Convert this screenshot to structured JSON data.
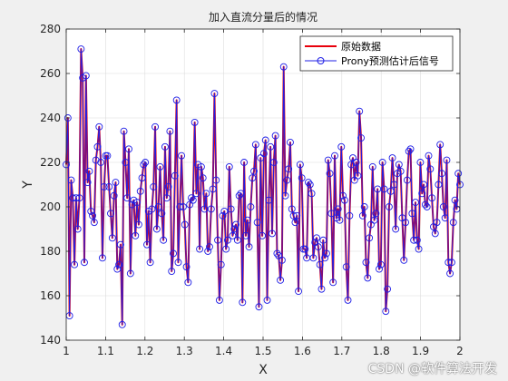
{
  "chart_data": {
    "type": "line",
    "title": "加入直流分量后的情况",
    "xlabel": "X",
    "ylabel": "Y",
    "xlim": [
      1,
      2
    ],
    "ylim": [
      140,
      280
    ],
    "xticks": [
      1,
      1.1,
      1.2,
      1.3,
      1.4,
      1.5,
      1.6,
      1.7,
      1.8,
      1.9,
      2
    ],
    "xtick_labels": [
      "1",
      "1.1",
      "1.2",
      "1.3",
      "1.4",
      "1.5",
      "1.6",
      "1.7",
      "1.8",
      "1.9",
      "2"
    ],
    "yticks": [
      140,
      160,
      180,
      200,
      220,
      240,
      260,
      280
    ],
    "ytick_labels": [
      "140",
      "160",
      "180",
      "200",
      "220",
      "240",
      "260",
      "280"
    ],
    "grid": true,
    "legend_position": "top-right",
    "x_start": 1,
    "x_end": 2,
    "series": [
      {
        "name": "原始数据",
        "color": "#e8000b",
        "marker": "none",
        "values": [
          219,
          240,
          151,
          212,
          204,
          174,
          204,
          190,
          204,
          271,
          258,
          175,
          259,
          211,
          216,
          198,
          196,
          193,
          221,
          227,
          236,
          220,
          177,
          209,
          223,
          223,
          209,
          197,
          186,
          205,
          211,
          172,
          174,
          183,
          147,
          234,
          220,
          204,
          226,
          170,
          201,
          203,
          187,
          202,
          192,
          207,
          213,
          219,
          220,
          183,
          198,
          175,
          199,
          209,
          236,
          190,
          200,
          218,
          197,
          185,
          227,
          204,
          209,
          234,
          171,
          179,
          214,
          248,
          175,
          200,
          223,
          200,
          192,
          173,
          166,
          201,
          204,
          203,
          238,
          206,
          219,
          181,
          218,
          213,
          199,
          206,
          180,
          182,
          199,
          208,
          251,
          212,
          185,
          158,
          174,
          196,
          198,
          181,
          185,
          218,
          199,
          187,
          190,
          192,
          185,
          205,
          206,
          157,
          220,
          187,
          194,
          182,
          200,
          213,
          216,
          228,
          193,
          155,
          222,
          187,
          224,
          230,
          158,
          203,
          227,
          188,
          220,
          232,
          179,
          178,
          167,
          176,
          263,
          205,
          212,
          217,
          229,
          199,
          196,
          193,
          196,
          162,
          219,
          213,
          181,
          181,
          177,
          211,
          210,
          206,
          177,
          184,
          186,
          182,
          174,
          163,
          185,
          177,
          179,
          221,
          215,
          197,
          166,
          223,
          195,
          199,
          194,
          227,
          205,
          203,
          173,
          158,
          196,
          219,
          222,
          212,
          220,
          214,
          243,
          231,
          196,
          200,
          175,
          168,
          186,
          192,
          218,
          194,
          197,
          208,
          172,
          174,
          220,
          208,
          153,
          163,
          200,
          207,
          222,
          210,
          190,
          215,
          219,
          216,
          195,
          176,
          193,
          212,
          225,
          226,
          197,
          185,
          202,
          185,
          181,
          220,
          206,
          210,
          201,
          200,
          223,
          217,
          204,
          191,
          188,
          193,
          210,
          228,
          215,
          200,
          195,
          221,
          175,
          170,
          175,
          193,
          203,
          199,
          215,
          210
        ]
      },
      {
        "name": "Prony预测估计后信号",
        "color": "#1f1fe6",
        "marker": "circle",
        "values": [
          219,
          240,
          151,
          212,
          204,
          174,
          204,
          190,
          204,
          271,
          258,
          175,
          259,
          211,
          216,
          198,
          196,
          193,
          221,
          227,
          236,
          220,
          177,
          209,
          223,
          223,
          209,
          197,
          186,
          205,
          211,
          172,
          174,
          183,
          147,
          234,
          220,
          204,
          226,
          170,
          201,
          203,
          187,
          202,
          192,
          207,
          213,
          219,
          220,
          183,
          198,
          175,
          199,
          209,
          236,
          190,
          200,
          218,
          197,
          185,
          227,
          204,
          209,
          234,
          171,
          179,
          214,
          248,
          175,
          200,
          223,
          200,
          192,
          173,
          166,
          201,
          204,
          203,
          238,
          206,
          219,
          181,
          218,
          213,
          199,
          206,
          180,
          182,
          199,
          208,
          251,
          212,
          185,
          158,
          174,
          196,
          198,
          181,
          185,
          218,
          199,
          187,
          190,
          192,
          185,
          205,
          206,
          157,
          220,
          187,
          194,
          182,
          200,
          213,
          216,
          228,
          193,
          155,
          222,
          187,
          224,
          230,
          158,
          203,
          227,
          188,
          220,
          232,
          179,
          178,
          167,
          176,
          263,
          205,
          212,
          217,
          229,
          199,
          196,
          193,
          196,
          162,
          219,
          213,
          181,
          181,
          177,
          211,
          210,
          206,
          177,
          184,
          186,
          182,
          174,
          163,
          185,
          177,
          179,
          221,
          215,
          197,
          166,
          223,
          195,
          199,
          194,
          227,
          205,
          203,
          173,
          158,
          196,
          219,
          222,
          212,
          220,
          214,
          243,
          231,
          196,
          200,
          175,
          168,
          186,
          192,
          218,
          194,
          197,
          208,
          172,
          174,
          220,
          208,
          153,
          163,
          200,
          207,
          222,
          210,
          190,
          215,
          219,
          216,
          195,
          176,
          193,
          212,
          225,
          226,
          197,
          185,
          202,
          185,
          181,
          220,
          206,
          210,
          201,
          200,
          223,
          217,
          204,
          191,
          188,
          193,
          210,
          228,
          215,
          200,
          195,
          221,
          175,
          170,
          175,
          193,
          203,
          199,
          215,
          210
        ]
      }
    ]
  },
  "watermark": "CSDN @软件算法开发"
}
